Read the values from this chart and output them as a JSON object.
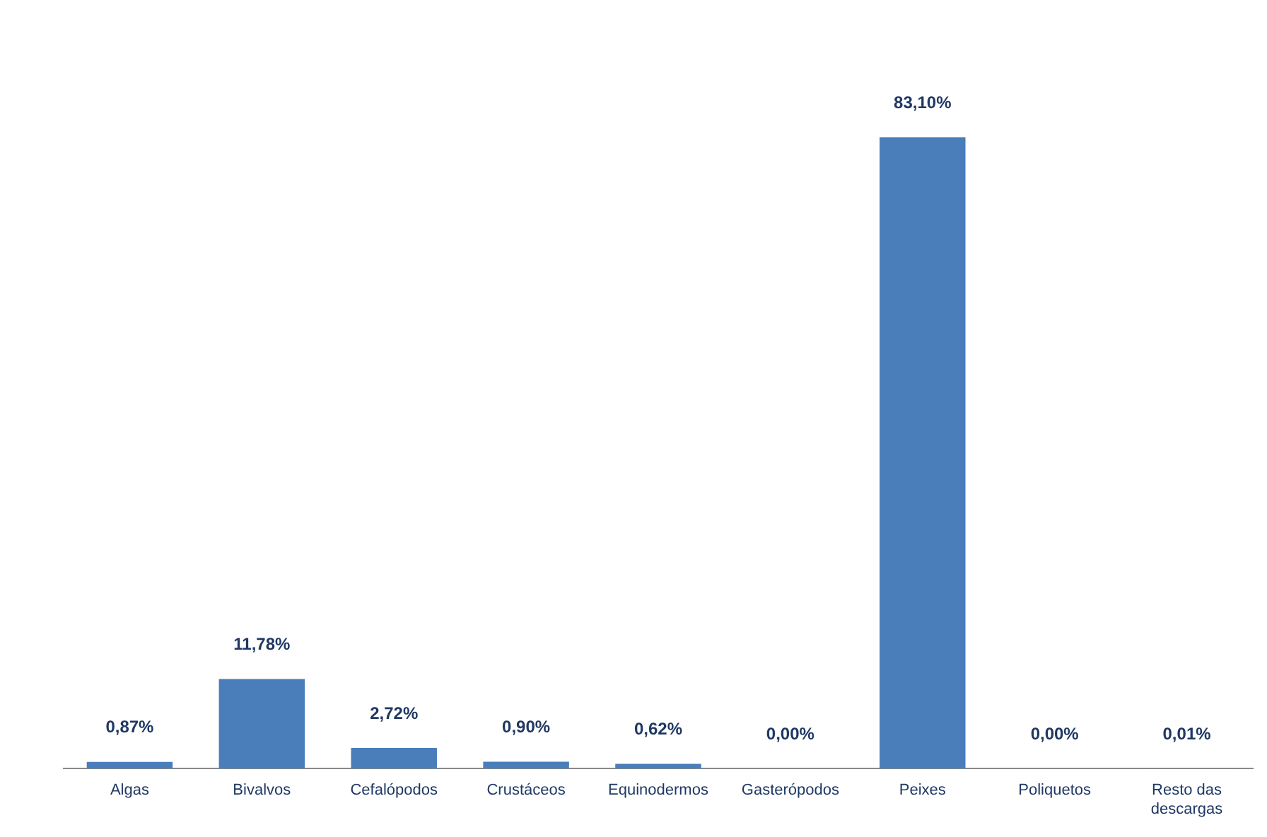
{
  "chart_data": {
    "type": "bar",
    "categories": [
      "Algas",
      "Bivalvos",
      "Cefalópodos",
      "Crustáceos",
      "Equinodermos",
      "Gasterópodos",
      "Peixes",
      "Poliquetos",
      "Resto das descargas"
    ],
    "values": [
      0.87,
      11.78,
      2.72,
      0.9,
      0.62,
      0,
      83.1,
      0,
      0.01
    ],
    "value_labels": [
      "0,87%",
      "11,78%",
      "2,72%",
      "0,90%",
      "0,62%",
      "0,00%",
      "83,10%",
      "0,00%",
      "0,01%"
    ],
    "color": "#4a7ebb",
    "grid": false,
    "legend": false
  }
}
